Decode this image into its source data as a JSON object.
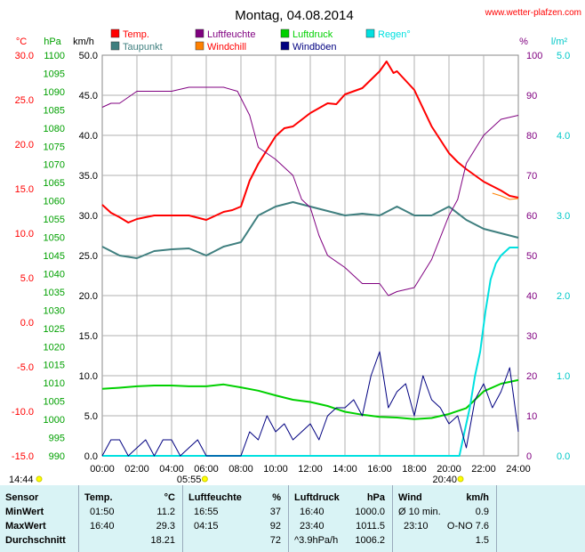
{
  "header": {
    "title": "Montag, 04.08.2014",
    "site": "www.wetter-plafzen.com"
  },
  "colors": {
    "temp": "#ff0000",
    "taupunkt": "#3f7f7f",
    "luftfeuchte": "#800080",
    "windchill": "#ff8000",
    "luftdruck": "#00d000",
    "windboen": "#000080",
    "regen": "#00e0e0",
    "c_axis": "#ff0000",
    "hpa_axis": "#00a000",
    "kmh_axis": "#000000",
    "pct_axis": "#800080",
    "rain_axis": "#00c8c8",
    "stats_bg": "#d9f3f5"
  },
  "chart_data": {
    "type": "line",
    "x_range": [
      "00:00",
      "24:00"
    ],
    "x_ticks": [
      "00:00",
      "02:00",
      "04:00",
      "06:00",
      "08:00",
      "10:00",
      "12:00",
      "14:00",
      "16:00",
      "18:00",
      "20:00",
      "22:00",
      "24:00"
    ],
    "axes": {
      "c": {
        "unit": "°C",
        "ticks": [
          "30.0",
          "25.0",
          "20.0",
          "15.0",
          "10.0",
          "5.0",
          "0.0",
          "-5.0",
          "-10.0",
          "-15.0"
        ],
        "range": [
          -15,
          30
        ]
      },
      "hpa": {
        "unit": "hPa",
        "ticks": [
          "1100",
          "1095",
          "1090",
          "1085",
          "1080",
          "1075",
          "1070",
          "1065",
          "1060",
          "1055",
          "1050",
          "1045",
          "1040",
          "1035",
          "1030",
          "1025",
          "1020",
          "1015",
          "1010",
          "1005",
          "1000",
          "995",
          "990"
        ],
        "range": [
          990,
          1100
        ]
      },
      "kmh": {
        "unit": "km/h",
        "ticks": [
          "50.0",
          "45.0",
          "40.0",
          "35.0",
          "30.0",
          "25.0",
          "20.0",
          "15.0",
          "10.0",
          "5.0",
          "0.0"
        ],
        "range": [
          0,
          50
        ]
      },
      "pct": {
        "unit": "%",
        "ticks": [
          "100",
          "90",
          "80",
          "70",
          "60",
          "50",
          "40",
          "30",
          "20",
          "10",
          "0"
        ],
        "range": [
          0,
          100
        ]
      },
      "rain": {
        "unit": "l/m²",
        "ticks": [
          "5.0",
          "4.0",
          "3.0",
          "2.0",
          "1.0",
          "0.0"
        ],
        "range": [
          0,
          5
        ]
      }
    },
    "legend": [
      {
        "name": "Temp.",
        "color": "#ff0000"
      },
      {
        "name": "Luftfeuchte",
        "color": "#800080"
      },
      {
        "name": "Luftdruck",
        "color": "#00d000"
      },
      {
        "name": "Regen°",
        "color": "#00e0e0"
      },
      {
        "name": "Taupunkt",
        "color": "#3f7f7f"
      },
      {
        "name": "Windchill",
        "color": "#ff8000"
      },
      {
        "name": "Windböen",
        "color": "#000080"
      }
    ],
    "series": [
      {
        "name": "Temp.",
        "axis": "c",
        "x": [
          0,
          0.5,
          1,
          1.5,
          2,
          3,
          4,
          5,
          6,
          7,
          7.5,
          8,
          8.5,
          9,
          10,
          10.5,
          11,
          12,
          13,
          13.5,
          14,
          15,
          16,
          16.4,
          16.8,
          17,
          18,
          19,
          20,
          20.5,
          21,
          22,
          23,
          23.5,
          24
        ],
        "y": [
          13.2,
          12.3,
          11.8,
          11.2,
          11.6,
          12.0,
          12.0,
          12.0,
          11.5,
          12.4,
          12.6,
          13.0,
          15.9,
          17.8,
          20.9,
          21.8,
          22.0,
          23.5,
          24.6,
          24.5,
          25.6,
          26.3,
          28.2,
          29.3,
          28.0,
          28.2,
          26.1,
          22.0,
          19.0,
          18.0,
          17.2,
          15.8,
          14.8,
          14.2,
          14.0
        ]
      },
      {
        "name": "Taupunkt",
        "axis": "c",
        "x": [
          0,
          1,
          2,
          3,
          4,
          5,
          6,
          7,
          8,
          9,
          10,
          11,
          12,
          13,
          14,
          15,
          16,
          17,
          18,
          19,
          20,
          21,
          22,
          23,
          24
        ],
        "y": [
          8.5,
          7.5,
          7.2,
          8.0,
          8.2,
          8.3,
          7.5,
          8.5,
          9.0,
          12.0,
          13.0,
          13.5,
          13.0,
          12.5,
          12.0,
          12.2,
          12.0,
          13.0,
          12.0,
          12.0,
          13.0,
          11.5,
          10.5,
          10.0,
          9.5
        ]
      },
      {
        "name": "Windchill",
        "axis": "c",
        "x": [
          22.5,
          23,
          23.5,
          24
        ],
        "y": [
          14.5,
          14.2,
          13.8,
          13.9
        ]
      },
      {
        "name": "Luftfeuchte",
        "axis": "pct",
        "x": [
          0,
          0.5,
          1,
          2,
          3,
          4,
          5,
          6,
          7,
          7.8,
          8.5,
          9,
          10,
          11,
          11.5,
          12,
          12.5,
          13,
          14,
          15,
          16,
          16.5,
          17,
          18,
          19,
          20,
          20.5,
          21,
          22,
          23,
          24
        ],
        "y": [
          87,
          88,
          88,
          91,
          91,
          91,
          92,
          92,
          92,
          91,
          85,
          77,
          74,
          70,
          64,
          62,
          55,
          50,
          47,
          43,
          43,
          40,
          41,
          42,
          49,
          60,
          64,
          73,
          80,
          84,
          85
        ]
      },
      {
        "name": "Luftdruck",
        "axis": "hpa",
        "x": [
          0,
          1,
          2,
          3,
          4,
          5,
          6,
          7,
          8,
          9,
          10,
          11,
          12,
          13,
          14,
          15,
          16,
          17,
          18,
          19,
          20,
          21,
          22,
          23,
          24
        ],
        "y": [
          1008.4,
          1008.7,
          1009.1,
          1009.3,
          1009.3,
          1009.1,
          1009.1,
          1009.6,
          1008.8,
          1007.9,
          1006.6,
          1005.4,
          1004.8,
          1003.7,
          1002.1,
          1001.3,
          1000.7,
          1000.5,
          1000.1,
          1000.4,
          1001.5,
          1003.1,
          1007.7,
          1009.8,
          1010.8
        ]
      },
      {
        "name": "Regen°",
        "axis": "rain",
        "x": [
          0,
          20.6,
          20.9,
          21.2,
          21.5,
          21.8,
          22.1,
          22.4,
          22.7,
          23,
          23.5,
          24
        ],
        "y": [
          0,
          0,
          0.3,
          0.6,
          1.0,
          1.3,
          1.8,
          2.2,
          2.4,
          2.5,
          2.6,
          2.6
        ]
      },
      {
        "name": "Windböen",
        "axis": "kmh",
        "x": [
          0,
          0.5,
          1,
          1.5,
          2,
          2.5,
          3,
          3.5,
          4,
          4.5,
          5,
          5.5,
          6,
          6.5,
          7,
          7.5,
          8,
          8.5,
          9,
          9.5,
          10,
          10.5,
          11,
          11.5,
          12,
          12.5,
          13,
          13.5,
          14,
          14.5,
          15,
          15.5,
          16,
          16.5,
          17,
          17.5,
          18,
          18.5,
          19,
          19.5,
          20,
          20.5,
          21,
          21.5,
          22,
          22.5,
          23,
          23.5,
          24
        ],
        "y": [
          0,
          2,
          2,
          0,
          1,
          2,
          0,
          2,
          2,
          0,
          1,
          2,
          0,
          0,
          0,
          0,
          0,
          3,
          2,
          5,
          3,
          4,
          2,
          3,
          4,
          2,
          5,
          6,
          6,
          7,
          5,
          10,
          13,
          6,
          8,
          9,
          5,
          10,
          7,
          6,
          4,
          5,
          1,
          7,
          9,
          6,
          8,
          11,
          3
        ]
      }
    ]
  },
  "markers": {
    "sunrise": "05:55",
    "sunset": "20:40",
    "daylength": "14:44"
  },
  "stats": {
    "headers": {
      "sensor": "Sensor",
      "temp": "Temp.",
      "temp_unit": "°C",
      "hum": "Luftfeuchte",
      "hum_unit": "%",
      "press": "Luftdruck",
      "press_unit": "hPa",
      "wind": "Wind",
      "wind_unit": "km/h"
    },
    "rows": [
      {
        "label": "MinWert",
        "temp_time": "01:50",
        "temp_val": "11.2",
        "hum_time": "16:55",
        "hum_val": "37",
        "press_time": "16:40",
        "press_val": "1000.0",
        "wind_time": "Ø 10 min.",
        "wind_val": "0.9"
      },
      {
        "label": "MaxWert",
        "temp_time": "16:40",
        "temp_val": "29.3",
        "hum_time": "04:15",
        "hum_val": "92",
        "press_time": "23:40",
        "press_val": "1011.5",
        "wind_time": "23:10",
        "wind_val": "O-NO 7.6"
      },
      {
        "label": "Durchschnitt",
        "temp_time": "",
        "temp_val": "18.21",
        "hum_time": "",
        "hum_val": "72",
        "press_time": "^3.9hPa/h",
        "press_val": "1006.2",
        "wind_time": "",
        "wind_val": "1.5"
      }
    ]
  }
}
